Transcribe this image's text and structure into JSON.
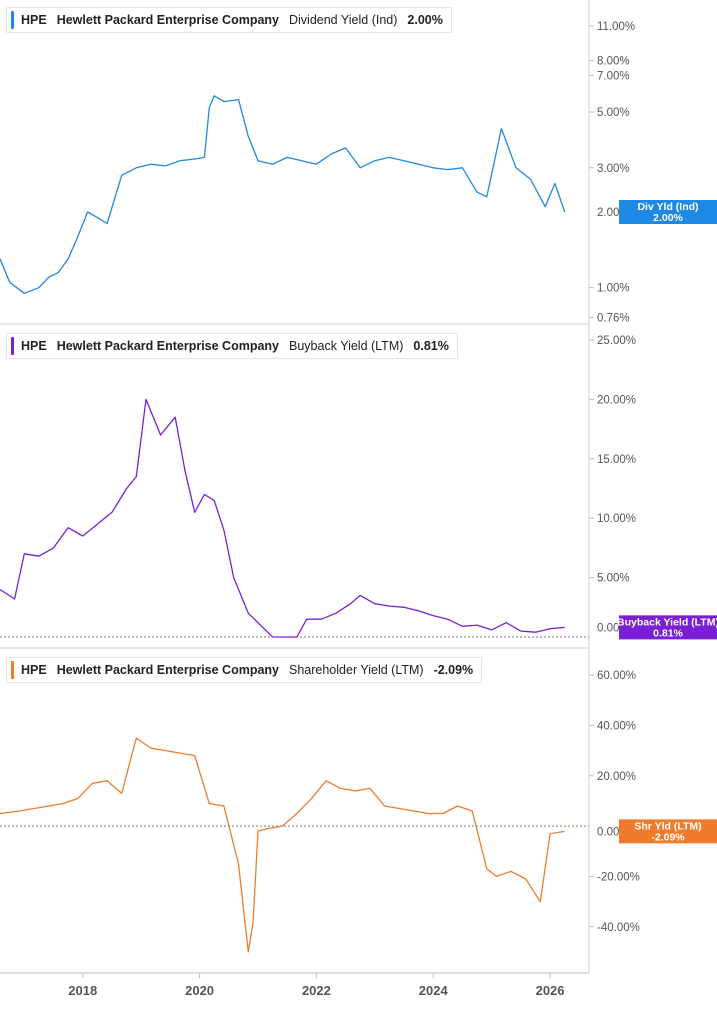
{
  "chart_data": [
    {
      "type": "line",
      "legend": {
        "ticker": "HPE",
        "company": "Hewlett Packard Enterprise Company",
        "metric": "Dividend Yield (Ind)",
        "value": "2.00%"
      },
      "badge": {
        "line1": "Div Yld (Ind)",
        "line2": "2.00%",
        "hidden_tick": "2.00%"
      },
      "color": "#1e88e5",
      "scale": "log",
      "ylim": [
        0.73,
        12.5
      ],
      "y_ticks": [
        {
          "value": 11,
          "label": "11.00%"
        },
        {
          "value": 8,
          "label": "8.00%"
        },
        {
          "value": 7,
          "label": "7.00%"
        },
        {
          "value": 5,
          "label": "5.00%"
        },
        {
          "value": 3,
          "label": "3.00%"
        },
        {
          "value": 1,
          "label": "1.00%"
        },
        {
          "value": 0.76,
          "label": "0.76%"
        }
      ],
      "baseline": null,
      "x": [
        "2016-08",
        "2016-10",
        "2017-01",
        "2017-04",
        "2017-06",
        "2017-08",
        "2017-10",
        "2017-12",
        "2018-02",
        "2018-04",
        "2018-06",
        "2018-09",
        "2018-12",
        "2019-03",
        "2019-06",
        "2019-09",
        "2019-12",
        "2020-02",
        "2020-03",
        "2020-04",
        "2020-06",
        "2020-09",
        "2020-11",
        "2021-01",
        "2021-04",
        "2021-07",
        "2021-10",
        "2022-01",
        "2022-04",
        "2022-07",
        "2022-10",
        "2023-01",
        "2023-04",
        "2023-07",
        "2023-10",
        "2024-01",
        "2024-04",
        "2024-07",
        "2024-10",
        "2024-12",
        "2025-03",
        "2025-06",
        "2025-09",
        "2025-12",
        "2026-02",
        "2026-04"
      ],
      "series": [
        {
          "values": [
            1.3,
            1.05,
            0.95,
            1.0,
            1.1,
            1.15,
            1.3,
            1.6,
            2.0,
            1.9,
            1.8,
            2.8,
            3.0,
            3.1,
            3.05,
            3.2,
            3.25,
            3.3,
            5.2,
            5.8,
            5.5,
            5.6,
            4.0,
            3.2,
            3.1,
            3.3,
            3.2,
            3.1,
            3.4,
            3.6,
            3.0,
            3.2,
            3.3,
            3.2,
            3.1,
            3.0,
            2.95,
            3.0,
            2.4,
            2.3,
            4.3,
            3.0,
            2.7,
            2.1,
            2.6,
            2.0
          ]
        }
      ]
    },
    {
      "type": "line",
      "legend": {
        "ticker": "HPE",
        "company": "Hewlett Packard Enterprise Company",
        "metric": "Buyback Yield (LTM)",
        "value": "0.81%"
      },
      "badge": {
        "line1": "Buyback Yield (LTM)",
        "line2": "0.81%",
        "hidden_tick": "0.00%"
      },
      "color": "#7a1fd6",
      "scale": "linear",
      "ylim": [
        0,
        25
      ],
      "y_ticks": [
        {
          "value": 25,
          "label": "25.00%"
        },
        {
          "value": 20,
          "label": "20.00%"
        },
        {
          "value": 15,
          "label": "15.00%"
        },
        {
          "value": 10,
          "label": "10.00%"
        },
        {
          "value": 5,
          "label": "5.00%"
        }
      ],
      "baseline": 0,
      "x": [
        "2016-08",
        "2016-11",
        "2017-01",
        "2017-04",
        "2017-07",
        "2017-10",
        "2018-01",
        "2018-04",
        "2018-07",
        "2018-10",
        "2018-12",
        "2019-02",
        "2019-05",
        "2019-08",
        "2019-10",
        "2019-12",
        "2020-02",
        "2020-04",
        "2020-06",
        "2020-08",
        "2020-11",
        "2021-01",
        "2021-04",
        "2021-06",
        "2021-09",
        "2021-11",
        "2022-02",
        "2022-05",
        "2022-08",
        "2022-10",
        "2023-01",
        "2023-04",
        "2023-07",
        "2023-10",
        "2024-01",
        "2024-04",
        "2024-07",
        "2024-10",
        "2025-01",
        "2025-04",
        "2025-07",
        "2025-10",
        "2026-01",
        "2026-04"
      ],
      "series": [
        {
          "values": [
            4.0,
            3.2,
            7.0,
            6.8,
            7.5,
            9.2,
            8.5,
            9.5,
            10.5,
            12.5,
            13.5,
            20.0,
            17.0,
            18.5,
            14.0,
            10.5,
            12.0,
            11.5,
            9.0,
            5.0,
            2.0,
            1.2,
            0.0,
            0.0,
            0.0,
            1.5,
            1.5,
            2.0,
            2.8,
            3.5,
            2.8,
            2.6,
            2.5,
            2.2,
            1.8,
            1.5,
            0.9,
            1.0,
            0.6,
            1.2,
            0.5,
            0.4,
            0.7,
            0.81
          ]
        }
      ]
    },
    {
      "type": "line",
      "legend": {
        "ticker": "HPE",
        "company": "Hewlett Packard Enterprise Company",
        "metric": "Shareholder Yield (LTM)",
        "value": "-2.09%"
      },
      "badge": {
        "line1": "Shr Yld (LTM)",
        "line2": "-2.09%",
        "hidden_tick": "0.00%"
      },
      "color": "#f07b2c",
      "scale": "linear",
      "ylim": [
        -54,
        66
      ],
      "y_ticks": [
        {
          "value": 60,
          "label": "60.00%"
        },
        {
          "value": 40,
          "label": "40.00%"
        },
        {
          "value": 20,
          "label": "20.00%"
        },
        {
          "value": -20,
          "label": "-20.00%"
        },
        {
          "value": -40,
          "label": "-40.00%"
        }
      ],
      "baseline": 0,
      "x": [
        "2016-08",
        "2016-12",
        "2017-03",
        "2017-06",
        "2017-09",
        "2017-12",
        "2018-03",
        "2018-06",
        "2018-09",
        "2018-12",
        "2019-03",
        "2019-06",
        "2019-09",
        "2019-12",
        "2020-03",
        "2020-06",
        "2020-09",
        "2020-11",
        "2020-12",
        "2021-01",
        "2021-03",
        "2021-06",
        "2021-09",
        "2021-12",
        "2022-03",
        "2022-06",
        "2022-09",
        "2022-12",
        "2023-03",
        "2023-06",
        "2023-09",
        "2023-12",
        "2024-03",
        "2024-06",
        "2024-09",
        "2024-12",
        "2025-02",
        "2025-05",
        "2025-08",
        "2025-11",
        "2026-01",
        "2026-04"
      ],
      "series": [
        {
          "values": [
            5,
            6,
            7,
            8,
            9,
            11,
            17,
            18,
            13,
            35,
            31,
            30,
            29,
            28,
            9,
            8,
            -15,
            -50,
            -38,
            -2,
            -1,
            0,
            5,
            11,
            18,
            15,
            14,
            15,
            8,
            7,
            6,
            5,
            5,
            8,
            6,
            -17,
            -20,
            -18,
            -21,
            -30,
            -3,
            -2.09
          ]
        }
      ]
    }
  ],
  "x_axis": {
    "start": "2016-08",
    "end": "2026-09",
    "ticks": [
      {
        "value": "2018-01",
        "label": "2018"
      },
      {
        "value": "2020-01",
        "label": "2020"
      },
      {
        "value": "2022-01",
        "label": "2022"
      },
      {
        "value": "2024-01",
        "label": "2024"
      },
      {
        "value": "2026-01",
        "label": "2026"
      }
    ]
  }
}
